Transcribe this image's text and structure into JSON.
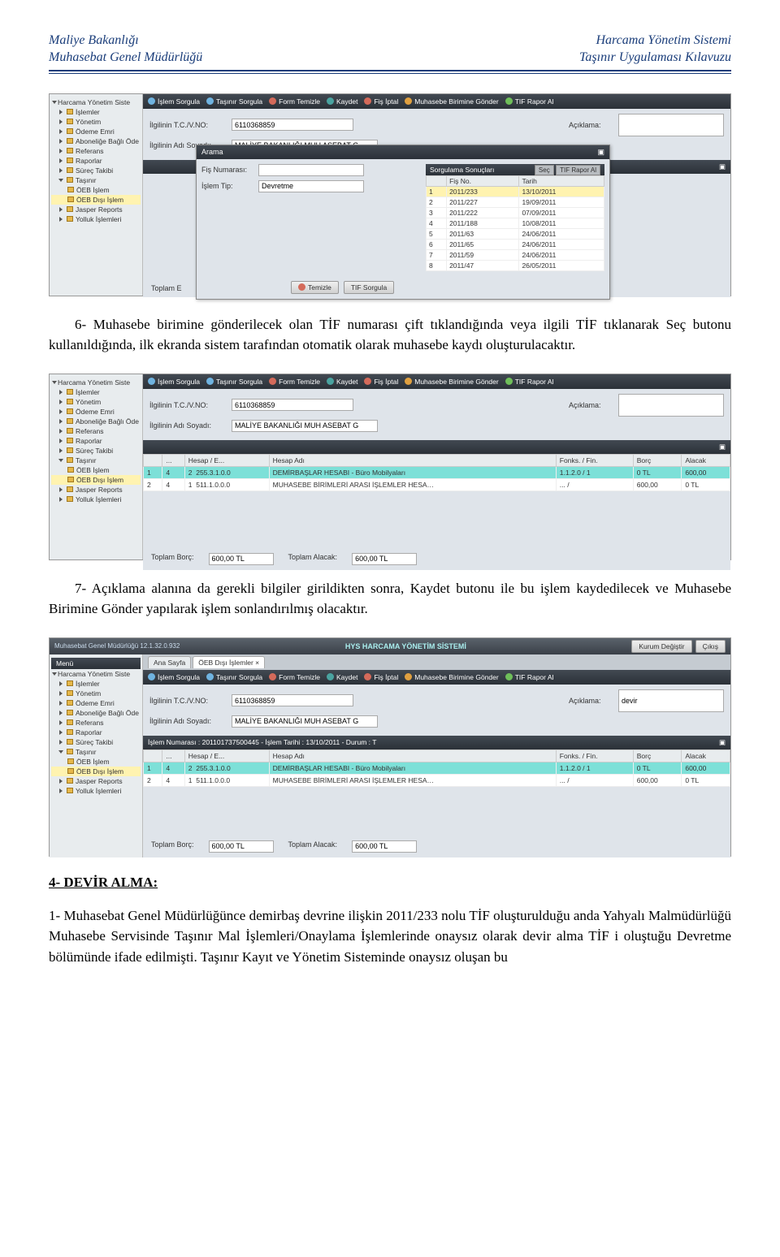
{
  "page_header": {
    "left_line1": "Maliye Bakanlığı",
    "left_line2": "Muhasebat Genel Müdürlüğü",
    "right_line1": "Harcama Yönetim Sistemi",
    "right_line2": "Taşınır Uygulaması Kılavuzu"
  },
  "sidebar": {
    "root": "Harcama Yönetim Siste",
    "items": [
      {
        "label": "İşlemler"
      },
      {
        "label": "Yönetim"
      },
      {
        "label": "Ödeme Emri"
      },
      {
        "label": "Aboneliğe Bağlı Öde"
      },
      {
        "label": "Referans"
      },
      {
        "label": "Raporlar"
      },
      {
        "label": "Süreç Takibi"
      },
      {
        "label": "Taşınır",
        "expanded": true
      },
      {
        "label": "ÖEB İşlem"
      },
      {
        "label": "ÖEB Dışı İşlem",
        "selected": true
      },
      {
        "label": "Jasper Reports"
      },
      {
        "label": "Yolluk İşlemleri"
      }
    ]
  },
  "toolbar": {
    "islem_sorgula": "İşlem Sorgula",
    "tasinir_sorgula": "Taşınır Sorgula",
    "form_temizle": "Form Temizle",
    "kaydet": "Kaydet",
    "fis_iptal": "Fiş İptal",
    "muhasebe_gonder": "Muhasebe Birimine Gönder",
    "tif_rapor": "TIF Rapor Al"
  },
  "fields": {
    "tcvkno_label": "İlgilinin T.C./V.NO:",
    "tcvkno_value": "6110368859",
    "adsoyad_label": "İlgilinin Adı Soyadı:",
    "adsoyad_value": "MALİYE BAKANLIĞI MUH ASEBAT G",
    "aciklama_label": "Açıklama:",
    "aciklama_value": "",
    "aciklama_value3": "devir"
  },
  "modal": {
    "title": "Arama",
    "fisno_label": "Fiş Numarası:",
    "fisno_value": "",
    "islemtip_label": "İşlem Tip:",
    "islemtip_value": "Devretme",
    "results_title": "Sorgulama Sonuçları",
    "btn_sec": "Seç",
    "btn_rapor": "TIF Rapor Al",
    "col_no": "",
    "col_fisno": "Fiş No.",
    "col_tarih": "Tarih",
    "rows": [
      {
        "n": "1",
        "fis": "2011/233",
        "tar": "13/10/2011",
        "sel": true
      },
      {
        "n": "2",
        "fis": "2011/227",
        "tar": "19/09/2011"
      },
      {
        "n": "3",
        "fis": "2011/222",
        "tar": "07/09/2011"
      },
      {
        "n": "4",
        "fis": "2011/188",
        "tar": "10/08/2011"
      },
      {
        "n": "5",
        "fis": "2011/63",
        "tar": "24/06/2011"
      },
      {
        "n": "6",
        "fis": "2011/65",
        "tar": "24/06/2011"
      },
      {
        "n": "7",
        "fis": "2011/59",
        "tar": "24/06/2011"
      },
      {
        "n": "8",
        "fis": "2011/47",
        "tar": "26/05/2011"
      }
    ],
    "btn_temizle": "Temizle",
    "btn_sorgula": "TIF Sorgula"
  },
  "grid": {
    "cols": {
      "c1": "",
      "c2": "...",
      "c3": "Hesap / E...",
      "c4": "Hesap Adı",
      "c5": "Fonks. / Fin.",
      "c6": "Borç",
      "c7": "Alacak"
    },
    "rows": [
      {
        "a": "1",
        "b": "4",
        "c": "2",
        "d": "255.3.1.0.0",
        "e": "DEMİRBAŞLAR HESABI - Büro Mobilyaları",
        "f": "1.1.2.0 / 1",
        "g": "0 TL",
        "h": "600,00",
        "hl": true
      },
      {
        "a": "2",
        "b": "4",
        "c": "1",
        "d": "511.1.0.0.0",
        "e": "MUHASEBE BİRİMLERİ ARASI İŞLEMLER HESA…",
        "f": "... /",
        "g": "600,00",
        "h": "0 TL"
      }
    ]
  },
  "totals": {
    "borc_label": "Toplam Borç:",
    "borc_value": "600,00 TL",
    "alacak_label": "Toplam Alacak:",
    "alacak_value": "600,00 TL",
    "toplam_label": "Toplam E"
  },
  "ss3": {
    "topleft": "Muhasebat Genel Müdürlüğü 12.1.32.0.932",
    "kurum_degistir": "Kurum Değiştir",
    "cikis": "Çıkış",
    "logo": "HYS HARCAMA YÖNETİM SİSTEMİ",
    "menu": "Menü",
    "tab1": "Ana Sayfa",
    "tab2": "ÖEB Dışı İşlemler",
    "islem_hdr": "İşlem Numarası : 201101737500445 - İşlem Tarihi : 13/10/2011 - Durum : T"
  },
  "text": {
    "p1": "6- Muhasebe birimine gönderilecek olan TİF numarası çift tıklandığında veya ilgili TİF tıklanarak Seç butonu kullanıldığında, ilk ekranda sistem tarafından otomatik olarak muhasebe kaydı oluşturulacaktır.",
    "p2": "7- Açıklama alanına da gerekli bilgiler girildikten sonra, Kaydet butonu ile bu işlem kaydedilecek ve Muhasebe Birimine Gönder yapılarak işlem sonlandırılmış olacaktır.",
    "h4": "4- DEVİR ALMA:",
    "p3": "1- Muhasebat Genel Müdürlüğünce demirbaş devrine ilişkin 2011/233 nolu TİF oluşturulduğu anda Yahyalı Malmüdürlüğü Muhasebe Servisinde Taşınır Mal İşlemleri/Onaylama İşlemlerinde onaysız olarak devir alma TİF i oluştuğu Devretme bölümünde ifade edilmişti. Taşınır Kayıt ve Yönetim Sisteminde onaysız oluşan bu"
  }
}
